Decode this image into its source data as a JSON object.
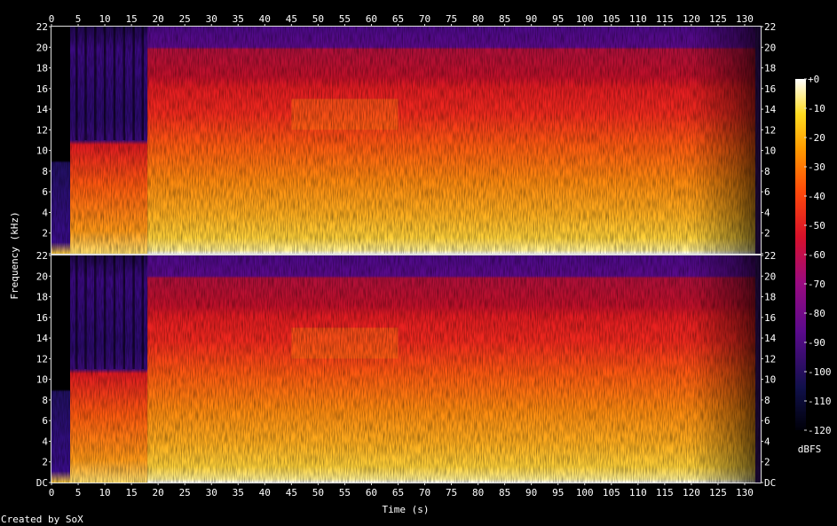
{
  "chart_data": {
    "type": "heatmap",
    "title": "",
    "xlabel": "Time (s)",
    "ylabel": "Frequency (kHz)",
    "xlim": [
      0,
      133
    ],
    "ylim": [
      0,
      22
    ],
    "x_ticks": [
      0,
      5,
      10,
      15,
      20,
      25,
      30,
      35,
      40,
      45,
      50,
      55,
      60,
      65,
      70,
      75,
      80,
      85,
      90,
      95,
      100,
      105,
      110,
      115,
      120,
      125,
      130
    ],
    "y_ticks": [
      "DC",
      "2",
      "4",
      "6",
      "8",
      "10",
      "12",
      "14",
      "16",
      "18",
      "20",
      "22"
    ],
    "channels": 2,
    "colorbar": {
      "label": "dBFS",
      "ticks": [
        "+0",
        "-10",
        "-20",
        "-30",
        "-40",
        "-50",
        "-60",
        "-70",
        "-80",
        "-90",
        "-100",
        "-110",
        "-120"
      ]
    },
    "footer": "Created by SoX",
    "colors": {
      "background": "#000000",
      "low": "#000010",
      "mid_low": "#4a0a8a",
      "mid": "#d0102a",
      "mid_high": "#ff6a00",
      "high": "#ffff9a",
      "max": "#ffffff"
    }
  }
}
